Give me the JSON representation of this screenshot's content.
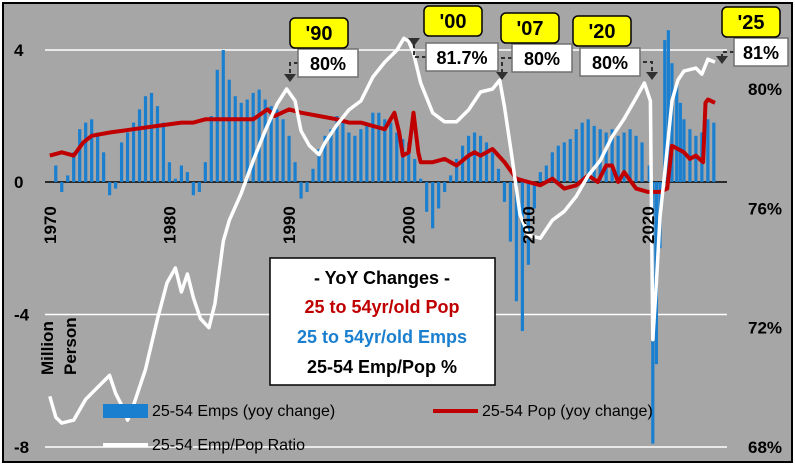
{
  "colors": {
    "background": "#a6a6a6",
    "bars": "#1a7fcf",
    "pop_line": "#c00000",
    "ratio_line": "#ffffff",
    "badge_fill": "#ffff00",
    "label_box_fill": "#ffffff"
  },
  "chart_data": {
    "type": "bar",
    "title": "",
    "xlabel": "",
    "ylabel": "Million Person",
    "x_ticks": [
      "1970",
      "1980",
      "1990",
      "2000",
      "2010",
      "2020"
    ],
    "y_left": {
      "range": [
        -8,
        4.5
      ],
      "tick_labels": [
        "4",
        "0",
        "-4",
        "-8"
      ],
      "tick_values": [
        4,
        0,
        -4,
        -8
      ]
    },
    "y_right": {
      "range": [
        68,
        82
      ],
      "tick_labels": [
        "80%",
        "76%",
        "72%",
        "68%"
      ],
      "tick_values": [
        80,
        76,
        72,
        68
      ]
    },
    "grid": true,
    "legend_position": "bottom",
    "series": [
      {
        "name": "25-54 Emps (yoy change)",
        "type": "bar",
        "axis": "left",
        "points": [
          [
            1970.5,
            0.5
          ],
          [
            1971,
            -0.3
          ],
          [
            1971.5,
            0.2
          ],
          [
            1972,
            0.9
          ],
          [
            1972.5,
            1.6
          ],
          [
            1973,
            1.8
          ],
          [
            1973.5,
            1.9
          ],
          [
            1974,
            1.5
          ],
          [
            1974.5,
            0.9
          ],
          [
            1975,
            -0.4
          ],
          [
            1975.5,
            -0.2
          ],
          [
            1976,
            1.2
          ],
          [
            1976.5,
            1.5
          ],
          [
            1977,
            1.8
          ],
          [
            1977.5,
            2.2
          ],
          [
            1978,
            2.6
          ],
          [
            1978.5,
            2.7
          ],
          [
            1979,
            2.3
          ],
          [
            1979.5,
            1.8
          ],
          [
            1980,
            0.6
          ],
          [
            1980.5,
            0.1
          ],
          [
            1981,
            0.5
          ],
          [
            1981.5,
            0.3
          ],
          [
            1982,
            -0.4
          ],
          [
            1982.5,
            -0.3
          ],
          [
            1983,
            0.6
          ],
          [
            1983.5,
            2.0
          ],
          [
            1984,
            3.4
          ],
          [
            1984.5,
            4.0
          ],
          [
            1985,
            3.1
          ],
          [
            1985.5,
            2.6
          ],
          [
            1986,
            2.4
          ],
          [
            1986.5,
            2.5
          ],
          [
            1987,
            2.7
          ],
          [
            1987.5,
            2.8
          ],
          [
            1988,
            2.5
          ],
          [
            1988.5,
            2.3
          ],
          [
            1989,
            2.2
          ],
          [
            1989.5,
            1.9
          ],
          [
            1990,
            1.4
          ],
          [
            1990.5,
            0.6
          ],
          [
            1991,
            -0.5
          ],
          [
            1991.5,
            -0.3
          ],
          [
            1992,
            0.4
          ],
          [
            1992.5,
            1.0
          ],
          [
            1993,
            1.4
          ],
          [
            1993.5,
            1.6
          ],
          [
            1994,
            2.0
          ],
          [
            1994.5,
            1.9
          ],
          [
            1995,
            1.5
          ],
          [
            1995.5,
            1.4
          ],
          [
            1996,
            1.6
          ],
          [
            1996.5,
            1.8
          ],
          [
            1997,
            2.1
          ],
          [
            1997.5,
            2.1
          ],
          [
            1998,
            1.9
          ],
          [
            1998.5,
            1.8
          ],
          [
            1999,
            1.5
          ],
          [
            1999.5,
            1.3
          ],
          [
            2000,
            1.2
          ],
          [
            2000.5,
            0.7
          ],
          [
            2001,
            0.1
          ],
          [
            2001.5,
            -0.9
          ],
          [
            2002,
            -1.4
          ],
          [
            2002.5,
            -0.8
          ],
          [
            2003,
            -0.3
          ],
          [
            2003.5,
            0.2
          ],
          [
            2004,
            0.7
          ],
          [
            2004.5,
            1.1
          ],
          [
            2005,
            1.4
          ],
          [
            2005.5,
            1.5
          ],
          [
            2006,
            1.4
          ],
          [
            2006.5,
            1.2
          ],
          [
            2007,
            0.9
          ],
          [
            2007.5,
            0.4
          ],
          [
            2008,
            -0.6
          ],
          [
            2008.5,
            -1.8
          ],
          [
            2009,
            -3.6
          ],
          [
            2009.5,
            -4.5
          ],
          [
            2010,
            -2.5
          ],
          [
            2010.5,
            -0.8
          ],
          [
            2011,
            0.3
          ],
          [
            2011.5,
            0.5
          ],
          [
            2012,
            0.9
          ],
          [
            2012.5,
            1.1
          ],
          [
            2013,
            1.2
          ],
          [
            2013.5,
            1.3
          ],
          [
            2014,
            1.6
          ],
          [
            2014.5,
            1.8
          ],
          [
            2015,
            1.9
          ],
          [
            2015.5,
            1.7
          ],
          [
            2016,
            1.6
          ],
          [
            2016.5,
            1.5
          ],
          [
            2017,
            1.6
          ],
          [
            2017.5,
            1.4
          ],
          [
            2018,
            1.5
          ],
          [
            2018.5,
            1.6
          ],
          [
            2019,
            1.4
          ],
          [
            2019.5,
            1.2
          ],
          [
            2020.1,
            0.5
          ],
          [
            2020.4,
            -7.9
          ],
          [
            2020.7,
            -5.5
          ],
          [
            2021,
            -2.0
          ],
          [
            2021.4,
            4.3
          ],
          [
            2021.7,
            4.6
          ],
          [
            2022,
            3.6
          ],
          [
            2022.4,
            3.0
          ],
          [
            2022.7,
            2.4
          ],
          [
            2023,
            1.9
          ],
          [
            2023.5,
            1.6
          ],
          [
            2024,
            1.4
          ],
          [
            2024.5,
            1.5
          ],
          [
            2025,
            1.9
          ],
          [
            2025.5,
            1.8
          ]
        ]
      },
      {
        "name": "25-54 Pop (yoy change)",
        "type": "line",
        "axis": "left",
        "points": [
          [
            1970,
            0.8
          ],
          [
            1971,
            0.9
          ],
          [
            1972,
            0.8
          ],
          [
            1972.8,
            1.2
          ],
          [
            1973.5,
            1.4
          ],
          [
            1975,
            1.5
          ],
          [
            1977,
            1.6
          ],
          [
            1979,
            1.7
          ],
          [
            1981,
            1.8
          ],
          [
            1982,
            1.8
          ],
          [
            1983,
            1.9
          ],
          [
            1985,
            1.9
          ],
          [
            1987,
            1.9
          ],
          [
            1988.2,
            2.2
          ],
          [
            1988.8,
            2.0
          ],
          [
            1990,
            2.2
          ],
          [
            1991,
            2.1
          ],
          [
            1992.5,
            2.0
          ],
          [
            1994,
            1.9
          ],
          [
            1995,
            1.8
          ],
          [
            1996,
            1.8
          ],
          [
            1997,
            1.7
          ],
          [
            1998,
            1.6
          ],
          [
            1998.8,
            2.1
          ],
          [
            1999.2,
            1.5
          ],
          [
            1999.5,
            0.8
          ],
          [
            2000,
            0.9
          ],
          [
            2000.4,
            2.1
          ],
          [
            2000.8,
            0.9
          ],
          [
            2001,
            0.6
          ],
          [
            2002,
            0.6
          ],
          [
            2003,
            0.7
          ],
          [
            2004,
            0.5
          ],
          [
            2005,
            0.8
          ],
          [
            2005.5,
            0.9
          ],
          [
            2006,
            0.8
          ],
          [
            2007,
            1.0
          ],
          [
            2007.5,
            0.8
          ],
          [
            2008,
            0.6
          ],
          [
            2009,
            0.1
          ],
          [
            2010,
            0.0
          ],
          [
            2011,
            -0.1
          ],
          [
            2012,
            0.1
          ],
          [
            2013,
            -0.2
          ],
          [
            2014,
            -0.1
          ],
          [
            2015,
            0.2
          ],
          [
            2015.8,
            0.0
          ],
          [
            2016.5,
            0.5
          ],
          [
            2017,
            0.5
          ],
          [
            2017.5,
            0.0
          ],
          [
            2018,
            0.3
          ],
          [
            2019,
            -0.2
          ],
          [
            2020,
            -0.3
          ],
          [
            2021,
            -0.3
          ],
          [
            2021.6,
            -0.2
          ],
          [
            2022,
            1.1
          ],
          [
            2022.5,
            1.0
          ],
          [
            2023,
            0.9
          ],
          [
            2023.5,
            0.7
          ],
          [
            2024,
            0.8
          ],
          [
            2024.6,
            0.6
          ],
          [
            2024.8,
            2.4
          ],
          [
            2025,
            2.5
          ],
          [
            2025.6,
            2.4
          ]
        ]
      },
      {
        "name": "25-54 Emp/Pop Ratio",
        "type": "line",
        "axis": "right",
        "points": [
          [
            1970,
            69.7
          ],
          [
            1970.5,
            69.0
          ],
          [
            1971,
            68.8
          ],
          [
            1972,
            68.9
          ],
          [
            1973,
            69.6
          ],
          [
            1974,
            70.0
          ],
          [
            1975,
            70.4
          ],
          [
            1975.5,
            69.8
          ],
          [
            1976,
            69.4
          ],
          [
            1976.5,
            68.9
          ],
          [
            1977,
            69.4
          ],
          [
            1978,
            70.6
          ],
          [
            1979,
            72.3
          ],
          [
            1979.8,
            73.5
          ],
          [
            1980.5,
            74.0
          ],
          [
            1981,
            73.2
          ],
          [
            1981.5,
            73.8
          ],
          [
            1982,
            73.0
          ],
          [
            1982.6,
            72.3
          ],
          [
            1983.3,
            72.0
          ],
          [
            1983.8,
            72.8
          ],
          [
            1984.5,
            74.9
          ],
          [
            1985,
            75.6
          ],
          [
            1986,
            76.5
          ],
          [
            1987,
            77.6
          ],
          [
            1988,
            78.6
          ],
          [
            1989,
            79.5
          ],
          [
            1989.8,
            80.0
          ],
          [
            1990.5,
            79.6
          ],
          [
            1991,
            78.6
          ],
          [
            1991.7,
            78.1
          ],
          [
            1992.5,
            77.8
          ],
          [
            1993,
            78.2
          ],
          [
            1994,
            78.8
          ],
          [
            1995,
            79.3
          ],
          [
            1996,
            79.6
          ],
          [
            1997,
            80.4
          ],
          [
            1998,
            80.9
          ],
          [
            1999,
            81.3
          ],
          [
            1999.6,
            81.7
          ],
          [
            2000,
            81.6
          ],
          [
            2000.4,
            81.2
          ],
          [
            2001,
            80.2
          ],
          [
            2002,
            79.2
          ],
          [
            2003,
            78.9
          ],
          [
            2004,
            78.9
          ],
          [
            2005,
            79.3
          ],
          [
            2006,
            79.9
          ],
          [
            2007,
            80.0
          ],
          [
            2007.6,
            80.3
          ],
          [
            2008,
            79.4
          ],
          [
            2008.6,
            77.8
          ],
          [
            2009.3,
            75.8
          ],
          [
            2010,
            75.1
          ],
          [
            2011,
            75.0
          ],
          [
            2012,
            75.6
          ],
          [
            2013,
            75.9
          ],
          [
            2014,
            76.4
          ],
          [
            2015,
            77.1
          ],
          [
            2016,
            77.6
          ],
          [
            2017,
            78.4
          ],
          [
            2018,
            79.0
          ],
          [
            2019,
            79.7
          ],
          [
            2019.7,
            80.2
          ],
          [
            2020.2,
            79.6
          ],
          [
            2020.4,
            71.6
          ],
          [
            2020.7,
            73.5
          ],
          [
            2021,
            75.7
          ],
          [
            2021.5,
            77.6
          ],
          [
            2022,
            79.6
          ],
          [
            2022.5,
            80.3
          ],
          [
            2023,
            80.6
          ],
          [
            2024,
            80.7
          ],
          [
            2024.5,
            80.5
          ],
          [
            2025,
            81.0
          ],
          [
            2025.6,
            80.9
          ]
        ]
      }
    ],
    "annotations": [
      {
        "badge": "'90",
        "label": "80%"
      },
      {
        "badge": "'00",
        "label": "81.7%"
      },
      {
        "badge": "'07",
        "label": "80%"
      },
      {
        "badge": "'20",
        "label": "80%"
      },
      {
        "badge": "'25",
        "label": "81%"
      }
    ],
    "text_box": {
      "title": "- YoY Changes -",
      "line_red": "25 to 54yr/old Pop",
      "line_blue": "25 to 54yr/old Emps",
      "line_black": "25-54 Emp/Pop %"
    }
  }
}
